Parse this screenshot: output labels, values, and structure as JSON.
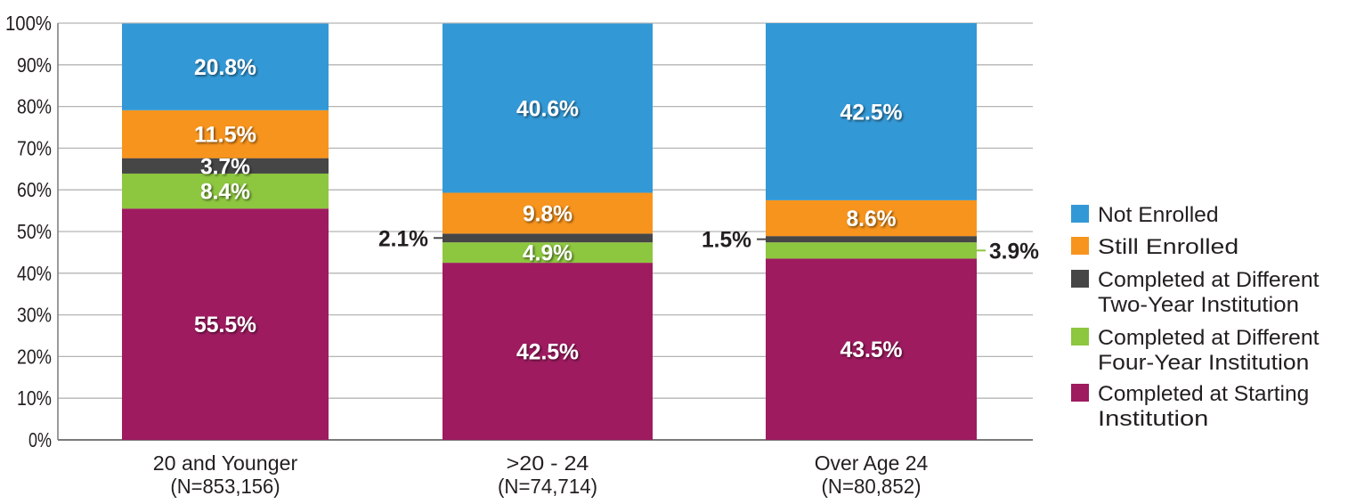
{
  "chart_data": {
    "type": "bar",
    "stacked": true,
    "title": "",
    "xlabel": "",
    "ylabel": "",
    "ylim": [
      0,
      100
    ],
    "yticks": [
      "0%",
      "10%",
      "20%",
      "30%",
      "40%",
      "50%",
      "60%",
      "70%",
      "80%",
      "90%",
      "100%"
    ],
    "grid": true,
    "legend_position": "right",
    "categories": [
      {
        "name": "20 and Younger",
        "n": "(N=853,156)"
      },
      {
        "name": ">20 - 24",
        "n": "(N=74,714)"
      },
      {
        "name": "Over Age 24",
        "n": "(N=80,852)"
      }
    ],
    "series": [
      {
        "name": "Completed at Starting Institution",
        "legend_lines": [
          "Completed at Starting",
          "Institution"
        ],
        "color": "#9e1b60",
        "values": [
          55.5,
          42.5,
          43.5
        ],
        "labels": [
          "55.5%",
          "42.5%",
          "43.5%"
        ],
        "label_pos": [
          "inside",
          "inside",
          "inside"
        ]
      },
      {
        "name": "Completed at Different Four-Year Institution",
        "legend_lines": [
          "Completed at Different",
          "Four-Year Institution"
        ],
        "color": "#8dc63f",
        "values": [
          8.4,
          4.9,
          3.9
        ],
        "labels": [
          "8.4%",
          "4.9%",
          "3.9%"
        ],
        "label_pos": [
          "inside",
          "inside",
          "right"
        ]
      },
      {
        "name": "Completed at Different Two-Year Institution",
        "legend_lines": [
          "Completed at Different",
          "Two-Year Institution"
        ],
        "color": "#464646",
        "values": [
          3.7,
          2.1,
          1.5
        ],
        "labels": [
          "3.7%",
          "2.1%",
          "1.5%"
        ],
        "label_pos": [
          "inside",
          "left",
          "left"
        ]
      },
      {
        "name": "Still Enrolled",
        "legend_lines": [
          "Still Enrolled"
        ],
        "color": "#f7941d",
        "values": [
          11.5,
          9.8,
          8.6
        ],
        "labels": [
          "11.5%",
          "9.8%",
          "8.6%"
        ],
        "label_pos": [
          "inside",
          "inside",
          "inside"
        ]
      },
      {
        "name": "Not Enrolled",
        "legend_lines": [
          "Not Enrolled"
        ],
        "color": "#3399d6",
        "values": [
          20.8,
          40.6,
          42.5
        ],
        "labels": [
          "20.8%",
          "40.6%",
          "42.5%"
        ],
        "label_pos": [
          "inside",
          "inside",
          "inside"
        ]
      }
    ]
  }
}
